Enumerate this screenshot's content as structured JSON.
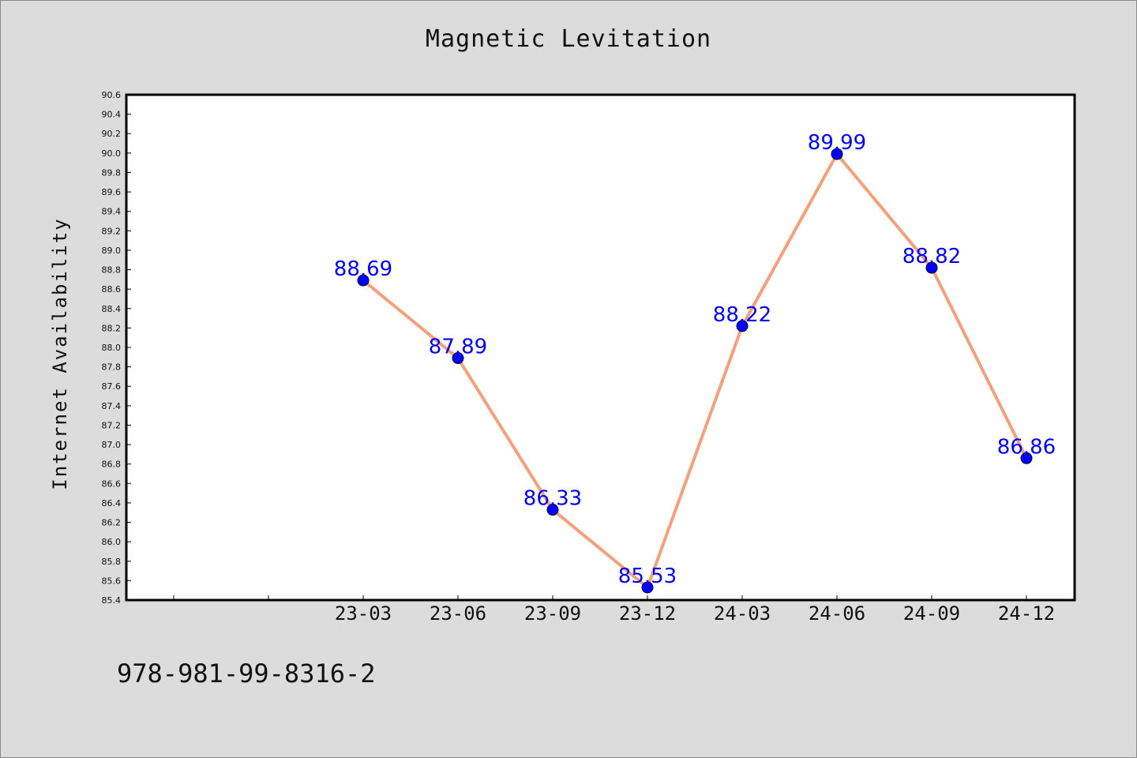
{
  "chart_data": {
    "type": "line",
    "title": "Magnetic Levitation",
    "xlabel": "",
    "ylabel": "Internet Availability",
    "categories": [
      "",
      "",
      "23-03",
      "23-06",
      "23-09",
      "23-12",
      "24-03",
      "24-06",
      "24-09",
      "24-12"
    ],
    "series": [
      {
        "values": [
          null,
          null,
          88.69,
          87.89,
          86.33,
          85.53,
          88.22,
          89.99,
          88.82,
          86.86
        ],
        "labels": [
          null,
          null,
          "88.69",
          "87.89",
          "86.33",
          "85.53",
          "88.22",
          "89.99",
          "88.82",
          "86.86"
        ],
        "line_color": "#f4a07a",
        "marker_color": "#0000ff",
        "label_color": "#0000ff"
      }
    ],
    "ylim": [
      85.4,
      90.6
    ],
    "yticks": [
      "85.4",
      "85.6",
      "85.8",
      "86.0",
      "86.2",
      "86.4",
      "86.6",
      "86.8",
      "87.0",
      "87.2",
      "87.4",
      "87.6",
      "87.8",
      "88.0",
      "88.2",
      "88.4",
      "88.6",
      "88.8",
      "89.0",
      "89.2",
      "89.4",
      "89.6",
      "89.8",
      "90.0",
      "90.2",
      "90.4",
      "90.6"
    ],
    "grid": false,
    "background": "#dcdcdc",
    "plot_background": "#ffffff"
  },
  "footer": {
    "id_text": "978-981-99-8316-2"
  }
}
